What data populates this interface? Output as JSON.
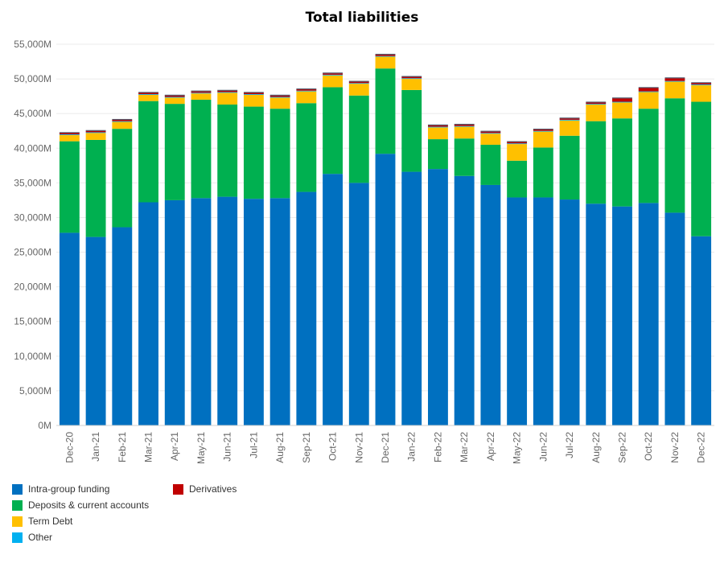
{
  "chart_data": {
    "type": "bar",
    "stacked": true,
    "title": "Total liabilities",
    "xlabel": "",
    "ylabel": "",
    "ylim": [
      0,
      55000
    ],
    "yticks": [
      0,
      5000,
      10000,
      15000,
      20000,
      25000,
      30000,
      35000,
      40000,
      45000,
      50000,
      55000
    ],
    "ytick_labels": [
      "0M",
      "5,000M",
      "10,000M",
      "15,000M",
      "20,000M",
      "25,000M",
      "30,000M",
      "35,000M",
      "40,000M",
      "45,000M",
      "50,000M",
      "55,000M"
    ],
    "grid": true,
    "legend_position": "bottom-left",
    "categories": [
      "Dec-20",
      "Jan-21",
      "Feb-21",
      "Mar-21",
      "Apr-21",
      "May-21",
      "Jun-21",
      "Jul-21",
      "Aug-21",
      "Sep-21",
      "Oct-21",
      "Nov-21",
      "Dec-21",
      "Jan-22",
      "Feb-22",
      "Mar-22",
      "Apr-22",
      "May-22",
      "Jun-22",
      "Jul-22",
      "Aug-22",
      "Sep-22",
      "Oct-22",
      "Nov-22",
      "Dec-22"
    ],
    "series": [
      {
        "name": "Intra-group funding",
        "color": "#0070c0",
        "values": [
          27800,
          27200,
          28600,
          32200,
          32500,
          32800,
          33000,
          32700,
          32800,
          33700,
          36300,
          35000,
          39200,
          36600,
          37000,
          36000,
          34700,
          32900,
          32900,
          32600,
          32000,
          31600,
          32100,
          30700,
          27300
        ]
      },
      {
        "name": "Deposits & current accounts",
        "color": "#00b050",
        "values": [
          13200,
          14000,
          14200,
          14600,
          13900,
          14200,
          13300,
          13300,
          12900,
          12800,
          12500,
          12600,
          12300,
          11800,
          4300,
          5400,
          5800,
          5300,
          7200,
          9200,
          11900,
          12700,
          13600,
          16500,
          19400
        ]
      },
      {
        "name": "Term Debt",
        "color": "#ffc000",
        "values": [
          900,
          1000,
          1000,
          900,
          900,
          900,
          1700,
          1700,
          1600,
          1700,
          1700,
          1700,
          1700,
          1600,
          1700,
          1700,
          1600,
          2400,
          2300,
          2200,
          2400,
          2300,
          2400,
          2400,
          2400
        ]
      },
      {
        "name": "Other",
        "color": "#00b0f0",
        "values": [
          100,
          100,
          100,
          100,
          100,
          100,
          100,
          100,
          100,
          100,
          100,
          100,
          100,
          100,
          100,
          100,
          100,
          100,
          100,
          100,
          100,
          100,
          100,
          100,
          100
        ]
      },
      {
        "name": "Derivatives",
        "color": "#c00000",
        "values": [
          200,
          200,
          200,
          200,
          200,
          200,
          200,
          200,
          200,
          200,
          200,
          200,
          200,
          200,
          200,
          200,
          200,
          200,
          200,
          200,
          200,
          500,
          500,
          400,
          200
        ]
      }
    ]
  },
  "legend": [
    {
      "label": "Intra-group funding",
      "color": "#0070c0",
      "col": 0,
      "row": 0
    },
    {
      "label": "Deposits & current accounts",
      "color": "#00b050",
      "col": 0,
      "row": 1
    },
    {
      "label": "Term Debt",
      "color": "#ffc000",
      "col": 0,
      "row": 2
    },
    {
      "label": "Other",
      "color": "#00b0f0",
      "col": 0,
      "row": 3
    },
    {
      "label": "Derivatives",
      "color": "#c00000",
      "col": 1,
      "row": 0
    }
  ]
}
